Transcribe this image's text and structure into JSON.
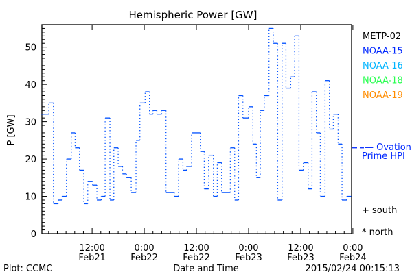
{
  "chart_data": {
    "type": "line",
    "title": "Hemispheric Power [GW]",
    "ylabel": "P [GW]",
    "xlabel": "Date and Time",
    "ylim": [
      0,
      56
    ],
    "xlim_hours_since_feb21_0000": [
      0.45,
      71.7
    ],
    "yticks": [
      0,
      10,
      20,
      30,
      40,
      50
    ],
    "xticks": [
      {
        "hour": 12,
        "time": "12:00",
        "date": "Feb21"
      },
      {
        "hour": 24,
        "time": "0:00",
        "date": "Feb22"
      },
      {
        "hour": 36,
        "time": "12:00",
        "date": "Feb22"
      },
      {
        "hour": 48,
        "time": "0:00",
        "date": "Feb23"
      },
      {
        "hour": 60,
        "time": "12:00",
        "date": "Feb23"
      },
      {
        "hour": 72,
        "time": "0:00",
        "date": "Feb24"
      }
    ],
    "series": [
      {
        "name": "NOAA-15",
        "color": "#0050ff",
        "step_start_hours": [
          0.3,
          2.05,
          3.1,
          4.2,
          5.1,
          6.1,
          7.2,
          8.1,
          9.1,
          10.1,
          11.0,
          12.1,
          13.1,
          14.1,
          15.0,
          16.1,
          17.0,
          18.0,
          19.0,
          19.9,
          21.0,
          22.1,
          23.0,
          24.2,
          25.2,
          26.0,
          26.9,
          28.0,
          29.0,
          30.9,
          31.9,
          32.9,
          33.8,
          34.9,
          36.9,
          37.8,
          38.8,
          39.9,
          40.8,
          41.8,
          43.8,
          44.8,
          45.7,
          46.7,
          48.0,
          49.0,
          49.8,
          50.7,
          51.6,
          52.7,
          53.7,
          54.7,
          55.7,
          56.6,
          57.7,
          58.6,
          59.6,
          60.6,
          61.7,
          62.6,
          63.6,
          64.5,
          65.6,
          66.6,
          67.5,
          68.6,
          69.5,
          70.6
        ],
        "step_end_hour": 71.6,
        "values": [
          32,
          35,
          8,
          9,
          10,
          20,
          27,
          23,
          17,
          8,
          14,
          13,
          9,
          10,
          31,
          9,
          23,
          18,
          16,
          15,
          11,
          25,
          35,
          38,
          32,
          33,
          32,
          33,
          11,
          10,
          20,
          17,
          18,
          27,
          22,
          12,
          21,
          10,
          19,
          11,
          23,
          9,
          37,
          31,
          34,
          24,
          15,
          33,
          37,
          55,
          51,
          9,
          51,
          39,
          42,
          53,
          17,
          19,
          12,
          38,
          27,
          10,
          41,
          28,
          32,
          24,
          9,
          10
        ]
      }
    ],
    "ovation_prime_hpi": 23,
    "legend": [
      {
        "label": "METP-02",
        "color": "#000000"
      },
      {
        "label": "NOAA-15",
        "color": "#0028ff"
      },
      {
        "label": "NOAA-16",
        "color": "#00b4ff"
      },
      {
        "label": "NOAA-18",
        "color": "#28ff50"
      },
      {
        "label": "NOAA-19",
        "color": "#ff8c00"
      }
    ],
    "ovation_label_1": "— Ovation",
    "ovation_label_2": "Prime HPI",
    "ovation_color": "#0028ff",
    "south_label": "+ south",
    "north_label": "* north"
  },
  "footer": {
    "plot_credit": "Plot: CCMC",
    "timestamp": "2015/02/24 00:15:13"
  }
}
